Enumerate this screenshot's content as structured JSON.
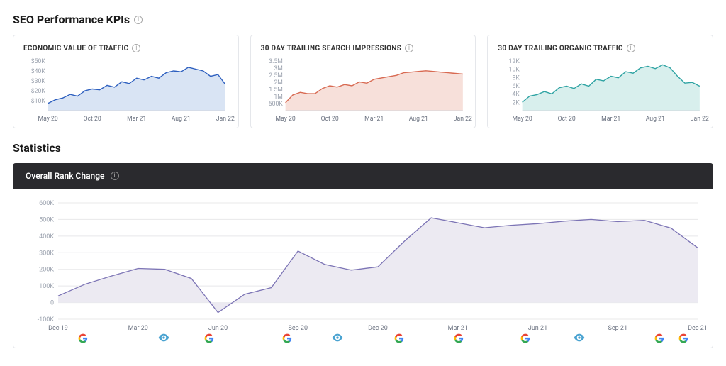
{
  "header": {
    "title": "SEO Performance KPIs"
  },
  "kpis": {
    "x_labels": [
      "May 20",
      "Oct 20",
      "Mar 21",
      "Aug 21",
      "Jan 22"
    ],
    "economic": {
      "title": "ECONOMIC VALUE OF TRAFFIC",
      "line_color": "#2d5fbf",
      "fill_color": "#c9d8f0",
      "y_ticks": [
        "$50K",
        "$40K",
        "$30K",
        "$20K",
        "$10K"
      ],
      "y_min": 0,
      "y_max": 55,
      "values": [
        8,
        12,
        14,
        18,
        16,
        22,
        24,
        23,
        28,
        26,
        32,
        30,
        36,
        34,
        38,
        36,
        42,
        44,
        43,
        48,
        46,
        44,
        38,
        40,
        29
      ]
    },
    "impressions": {
      "title": "30 DAY TRAILING SEARCH IMPRESSIONS",
      "line_color": "#d86a52",
      "fill_color": "#f3d3cb",
      "y_ticks": [
        "3.5M",
        "3M",
        "2.5M",
        "2M",
        "1.5M",
        "1M",
        "500K"
      ],
      "y_min": 0,
      "y_max": 3.8,
      "values": [
        0.6,
        1.2,
        1.4,
        1.3,
        1.3,
        1.7,
        1.9,
        1.8,
        2.0,
        1.9,
        2.2,
        2.1,
        2.4,
        2.5,
        2.6,
        2.7,
        2.9,
        2.95,
        3.0,
        3.05,
        3.0,
        2.95,
        2.9,
        2.85,
        2.8
      ]
    },
    "organic": {
      "title": "30 DAY TRAILING ORGANIC TRAFFIC",
      "line_color": "#2ea3a3",
      "fill_color": "#c8e8e6",
      "y_ticks": [
        "12K",
        "10K",
        "8K",
        "6K",
        "4K",
        "2K"
      ],
      "y_min": 0,
      "y_max": 13,
      "values": [
        2.2,
        3.8,
        4.2,
        5.0,
        4.4,
        6.0,
        6.4,
        5.8,
        7.0,
        6.4,
        8.2,
        7.8,
        9.0,
        8.6,
        10.2,
        9.8,
        11.2,
        11.6,
        11.0,
        12.0,
        11.2,
        9.0,
        7.2,
        7.4,
        6.4
      ]
    }
  },
  "stats": {
    "section_title": "Statistics",
    "header": "Overall Rank Change",
    "line_color": "#7c74b5",
    "fill_color": "#eceaf2",
    "grid_color": "#e8e8ea",
    "y_ticks": [
      600,
      500,
      400,
      300,
      200,
      100,
      0,
      -100
    ],
    "y_tick_labels": [
      "600K",
      "500K",
      "400K",
      "300K",
      "200K",
      "100K",
      "0",
      "-100K"
    ],
    "x_labels": [
      "Dec 19",
      "Mar 20",
      "Jun 20",
      "Sep 20",
      "Dec 20",
      "Mar 21",
      "Jun 21",
      "Sep 21",
      "Dec 21"
    ],
    "x_min": 0,
    "x_max": 24,
    "y_min": -100,
    "y_max": 600,
    "values": [
      40,
      110,
      160,
      205,
      200,
      145,
      -60,
      50,
      90,
      310,
      230,
      195,
      215,
      370,
      510,
      480,
      450,
      465,
      475,
      490,
      500,
      487,
      495,
      448,
      330
    ],
    "events": [
      {
        "x": 1.0,
        "type": "google"
      },
      {
        "x": 4.0,
        "type": "eye"
      },
      {
        "x": 5.7,
        "type": "google"
      },
      {
        "x": 8.6,
        "type": "google"
      },
      {
        "x": 10.5,
        "type": "eye"
      },
      {
        "x": 12.8,
        "type": "google"
      },
      {
        "x": 15.0,
        "type": "google"
      },
      {
        "x": 17.5,
        "type": "google"
      },
      {
        "x": 19.5,
        "type": "eye"
      },
      {
        "x": 22.5,
        "type": "google"
      },
      {
        "x": 23.4,
        "type": "google"
      }
    ]
  }
}
